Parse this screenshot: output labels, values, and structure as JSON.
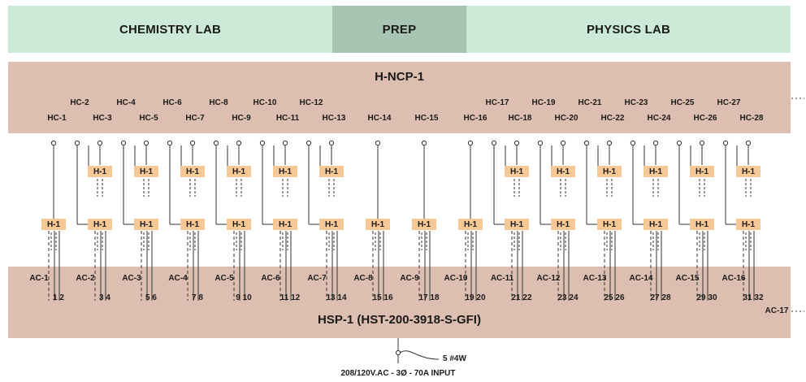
{
  "zones": {
    "chemistry": "CHEMISTRY LAB",
    "prep": "PREP",
    "physics": "PHYSICS LAB"
  },
  "top_panel": {
    "title": "H-NCP-1"
  },
  "bottom_panel": {
    "title": "HSP-1 (HST-200-3918-S-GFI)"
  },
  "input": {
    "cable": "5 #4W",
    "rating": "208/120V.AC - 3Ø - 70A INPUT"
  },
  "hc_labels": [
    "HC-1",
    "HC-2",
    "HC-3",
    "HC-4",
    "HC-5",
    "HC-6",
    "HC-7",
    "HC-8",
    "HC-9",
    "HC-10",
    "HC-11",
    "HC-12",
    "HC-13",
    "HC-14",
    "HC-15",
    "HC-16",
    "HC-17",
    "HC-18",
    "HC-19",
    "HC-20",
    "HC-21",
    "HC-22",
    "HC-23",
    "HC-24",
    "HC-25",
    "HC-26",
    "HC-27",
    "HC-28"
  ],
  "ac_labels": [
    "AC-1",
    "AC-2",
    "AC-3",
    "AC-4",
    "AC-5",
    "AC-6",
    "AC-7",
    "AC-8",
    "AC-9",
    "AC-10",
    "AC-11",
    "AC-12",
    "AC-13",
    "AC-14",
    "AC-15",
    "AC-16",
    "AC-17"
  ],
  "circuit_pairs": [
    "1  2",
    "3  4",
    "5  6",
    "7  8",
    "9  10",
    "11  12",
    "13  14",
    "15  16",
    "17  18",
    "19  20",
    "21  22",
    "23  24",
    "25  26",
    "27  28",
    "29  30",
    "31  32"
  ],
  "relay_label": "H-1"
}
